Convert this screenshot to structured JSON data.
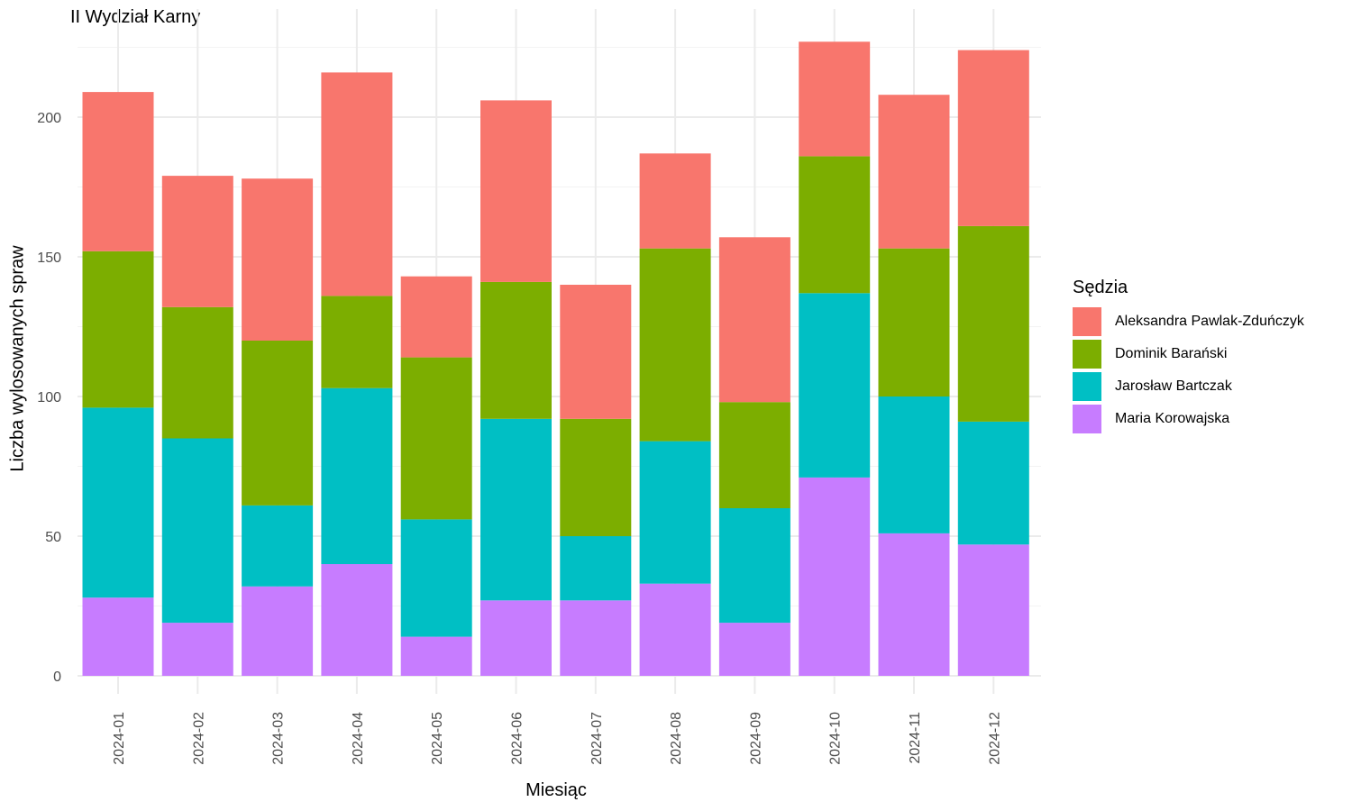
{
  "chart_data": {
    "type": "bar",
    "stacked": true,
    "title": "II Wydział Karny",
    "xlabel": "Miesiąc",
    "ylabel": "Liczba wylosowanych spraw",
    "ylim": [
      0,
      230
    ],
    "yticks": [
      0,
      50,
      100,
      150,
      200
    ],
    "grid": true,
    "legend_title": "Sędzia",
    "legend_position": "right",
    "categories": [
      "2024-01",
      "2024-02",
      "2024-03",
      "2024-04",
      "2024-05",
      "2024-06",
      "2024-07",
      "2024-08",
      "2024-09",
      "2024-10",
      "2024-11",
      "2024-12"
    ],
    "series": [
      {
        "name": "Aleksandra Pawlak-Zduńczyk",
        "color": "#F8766D",
        "values": [
          57,
          47,
          58,
          80,
          29,
          65,
          48,
          34,
          59,
          41,
          55,
          63
        ]
      },
      {
        "name": "Dominik Barański",
        "color": "#7CAE00",
        "values": [
          56,
          47,
          59,
          33,
          58,
          49,
          42,
          69,
          38,
          49,
          53,
          70
        ]
      },
      {
        "name": "Jarosław Bartczak",
        "color": "#00BFC4",
        "values": [
          68,
          66,
          29,
          63,
          42,
          65,
          23,
          51,
          41,
          66,
          49,
          44
        ]
      },
      {
        "name": "Maria Korowajska",
        "color": "#C77CFF",
        "values": [
          28,
          19,
          32,
          40,
          14,
          27,
          27,
          33,
          19,
          71,
          51,
          47
        ]
      }
    ]
  }
}
